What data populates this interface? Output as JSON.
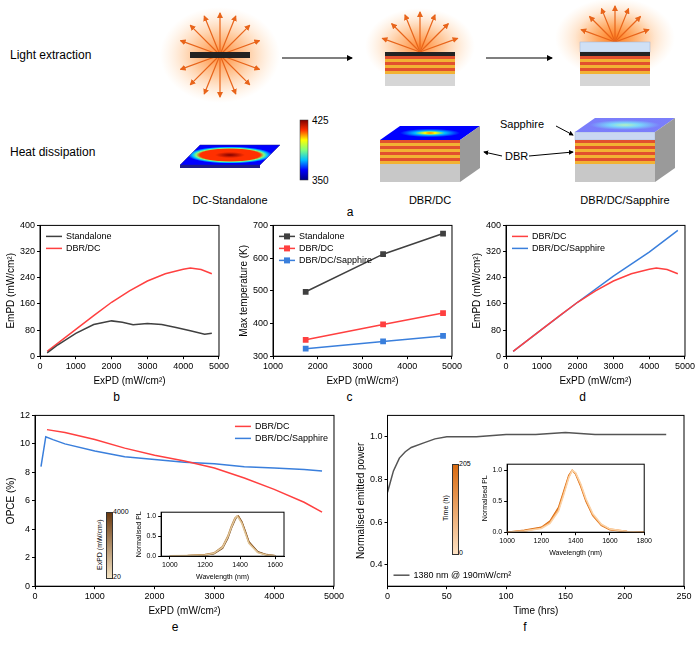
{
  "panel_a": {
    "letter": "a",
    "rows": [
      "Light extraction",
      "Heat dissipation"
    ],
    "devices": [
      "DC-Standalone",
      "DBR/DC",
      "DBR/DC/Sapphire"
    ],
    "layer_labels": [
      "Sapphire",
      "DBR"
    ],
    "colorbar": {
      "range": [
        350,
        425
      ],
      "ticks": [
        350,
        425
      ],
      "colors": [
        "#00007f",
        "#0000ff",
        "#00bfff",
        "#7fff7f",
        "#ffff00",
        "#ff3000",
        "#7f0000"
      ]
    }
  },
  "chart_data": [
    {
      "panel": "b",
      "type": "line",
      "x_label": "ExPD (mW/cm²)",
      "y_label": "EmPD (mW/cm²)",
      "xlim": [
        0,
        5000
      ],
      "xticks": [
        0,
        1000,
        2000,
        3000,
        4000,
        5000
      ],
      "ylim": [
        0,
        400
      ],
      "yticks": [
        0,
        80,
        160,
        240,
        320,
        400
      ],
      "grid": false,
      "legend": "upper left",
      "series": [
        {
          "name": "Standalone",
          "color": "#404040",
          "x": [
            200,
            500,
            1000,
            1500,
            2000,
            2300,
            2600,
            3000,
            3400,
            3800,
            4200,
            4600,
            4800
          ],
          "values": [
            10,
            35,
            70,
            97,
            108,
            104,
            96,
            100,
            97,
            88,
            78,
            67,
            70
          ]
        },
        {
          "name": "DBR/DC",
          "color": "#ff4040",
          "x": [
            200,
            500,
            1000,
            1500,
            2000,
            2500,
            3000,
            3500,
            4000,
            4200,
            4500,
            4800
          ],
          "values": [
            15,
            40,
            82,
            124,
            165,
            200,
            230,
            252,
            266,
            270,
            265,
            252
          ]
        }
      ]
    },
    {
      "panel": "c",
      "type": "line",
      "x_label": "ExPD (mW/cm²)",
      "y_label": "Max temperature (K)",
      "xlim": [
        1000,
        5000
      ],
      "xticks": [
        1000,
        2000,
        3000,
        4000,
        5000
      ],
      "ylim": [
        300,
        700
      ],
      "yticks": [
        300,
        400,
        500,
        600,
        700
      ],
      "grid": false,
      "legend": "upper left",
      "marker": "square",
      "series": [
        {
          "name": "Standalone",
          "color": "#404040",
          "x": [
            1730,
            3460,
            4800
          ],
          "values": [
            497,
            612,
            675
          ]
        },
        {
          "name": "DBR/DC",
          "color": "#ff4040",
          "x": [
            1730,
            3460,
            4800
          ],
          "values": [
            350,
            397,
            432
          ]
        },
        {
          "name": "DBR/DC/Sapphire",
          "color": "#3a7fdc",
          "x": [
            1730,
            3460,
            4800
          ],
          "values": [
            323,
            345,
            362
          ]
        }
      ]
    },
    {
      "panel": "d",
      "type": "line",
      "x_label": "ExPD (mW/cm²)",
      "y_label": "EmPD (mW/cm²)",
      "xlim": [
        0,
        5000
      ],
      "xticks": [
        0,
        1000,
        2000,
        3000,
        4000,
        5000
      ],
      "ylim": [
        0,
        400
      ],
      "yticks": [
        0,
        80,
        160,
        240,
        320,
        400
      ],
      "grid": false,
      "legend": "upper left",
      "series": [
        {
          "name": "DBR/DC",
          "color": "#ff4040",
          "x": [
            200,
            500,
            1000,
            1500,
            2000,
            2500,
            3000,
            3500,
            4000,
            4200,
            4500,
            4800
          ],
          "values": [
            15,
            40,
            82,
            124,
            165,
            200,
            230,
            252,
            266,
            270,
            265,
            252
          ]
        },
        {
          "name": "DBR/DC/Sapphire",
          "color": "#3a7fdc",
          "x": [
            200,
            1000,
            2000,
            3000,
            4000,
            4800
          ],
          "values": [
            15,
            82,
            165,
            245,
            318,
            385
          ]
        }
      ]
    },
    {
      "panel": "e",
      "type": "line",
      "x_label": "ExPD (mW/cm²)",
      "y_label": "OPCE (%)",
      "xlim": [
        0,
        5000
      ],
      "xticks": [
        0,
        1000,
        2000,
        3000,
        4000,
        5000
      ],
      "ylim": [
        0,
        12
      ],
      "yticks": [
        0,
        2,
        4,
        6,
        8,
        10,
        12
      ],
      "grid": false,
      "legend": "upper right",
      "series": [
        {
          "name": "DBR/DC",
          "color": "#ff4040",
          "x": [
            200,
            500,
            1000,
            1500,
            2000,
            2500,
            3000,
            3500,
            4000,
            4500,
            4800
          ],
          "values": [
            11.0,
            10.8,
            10.3,
            9.7,
            9.2,
            8.8,
            8.3,
            7.6,
            6.8,
            5.9,
            5.2
          ]
        },
        {
          "name": "DBR/DC/Sapphire",
          "color": "#3a7fdc",
          "x": [
            100,
            180,
            300,
            500,
            1000,
            1500,
            2000,
            2500,
            3000,
            3500,
            4000,
            4500,
            4800
          ],
          "values": [
            8.4,
            10.5,
            10.3,
            10.0,
            9.5,
            9.1,
            8.9,
            8.7,
            8.6,
            8.4,
            8.3,
            8.2,
            8.1
          ]
        }
      ],
      "inset": {
        "type": "line",
        "x_label": "Wavelength (nm)",
        "y_label": "Normalised PL",
        "xlim": [
          950,
          1650
        ],
        "xticks": [
          1000,
          1200,
          1400,
          1600
        ],
        "ylim": [
          0,
          1.1
        ],
        "yticks": [
          {
            "value": 0,
            "label": "0.0"
          },
          {
            "value": 0.5,
            "label": "0.5"
          },
          {
            "value": 1,
            "label": "1.0"
          }
        ],
        "grid": false,
        "x": [
          1000,
          1100,
          1200,
          1250,
          1300,
          1330,
          1350,
          1370,
          1380,
          1390,
          1410,
          1430,
          1450,
          1500,
          1550,
          1600
        ],
        "series": [
          {
            "color": "#e2c79a",
            "values": [
              0.01,
              0.02,
              0.03,
              0.07,
              0.22,
              0.48,
              0.72,
              0.93,
              1.0,
              0.96,
              0.82,
              0.57,
              0.32,
              0.09,
              0.03,
              0.01
            ]
          },
          {
            "color": "#b07a3c",
            "values": [
              0.01,
              0.02,
              0.04,
              0.08,
              0.24,
              0.5,
              0.75,
              0.95,
              0.99,
              1.0,
              0.84,
              0.6,
              0.34,
              0.1,
              0.03,
              0.01
            ]
          },
          {
            "color": "#6b3a10",
            "values": [
              0.0,
              0.01,
              0.03,
              0.06,
              0.2,
              0.45,
              0.7,
              0.9,
              0.98,
              1.0,
              0.86,
              0.62,
              0.36,
              0.11,
              0.04,
              0.01
            ]
          }
        ],
        "colorbar": {
          "label": "ExPD (mW/cm²)",
          "range": [
            20,
            4000
          ],
          "ticks": [
            20,
            4000
          ],
          "colors": [
            "#f4e4c4",
            "#6b3a10"
          ]
        }
      }
    },
    {
      "panel": "f",
      "type": "line",
      "x_label": "Time (hrs)",
      "y_label": "Normalised emitted power",
      "xlim": [
        0,
        250
      ],
      "xticks": [
        0,
        50,
        100,
        150,
        200,
        250
      ],
      "ylim": [
        0.3,
        1.1
      ],
      "yticks": [
        0.4,
        0.6,
        0.8,
        {
          "value": 1,
          "label": "1.0"
        }
      ],
      "grid": false,
      "legend": "lower left",
      "series": [
        {
          "name": "1380 nm @ 190mW/cm²",
          "color": "#555555",
          "x": [
            0,
            2,
            5,
            10,
            15,
            20,
            30,
            40,
            50,
            75,
            100,
            125,
            150,
            175,
            200,
            235
          ],
          "values": [
            0.74,
            0.78,
            0.84,
            0.9,
            0.93,
            0.95,
            0.97,
            0.99,
            1.0,
            1.0,
            1.01,
            1.01,
            1.02,
            1.01,
            1.01,
            1.01
          ]
        }
      ],
      "inset": {
        "type": "line",
        "x_label": "Wavelength (nm)",
        "y_label": "Normalised PL",
        "xlim": [
          1000,
          1800
        ],
        "xticks": [
          1000,
          1200,
          1400,
          1600,
          1800
        ],
        "ylim": [
          0,
          1.1
        ],
        "yticks": [
          {
            "value": 0,
            "label": "0.0"
          },
          {
            "value": 0.5,
            "label": "0.5"
          },
          {
            "value": 1,
            "label": "1.0"
          }
        ],
        "grid": false,
        "x": [
          1000,
          1100,
          1200,
          1250,
          1300,
          1330,
          1360,
          1380,
          1400,
          1430,
          1460,
          1500,
          1550,
          1600,
          1700,
          1800
        ],
        "series": [
          {
            "color": "#fbd3a8",
            "values": [
              0.0,
              0.02,
              0.06,
              0.14,
              0.34,
              0.6,
              0.88,
              1.0,
              0.96,
              0.78,
              0.54,
              0.3,
              0.13,
              0.05,
              0.01,
              0.0
            ]
          },
          {
            "color": "#f39a4a",
            "values": [
              0.0,
              0.02,
              0.07,
              0.16,
              0.37,
              0.63,
              0.9,
              1.0,
              0.95,
              0.76,
              0.52,
              0.28,
              0.12,
              0.05,
              0.01,
              0.0
            ]
          },
          {
            "color": "#d86a10",
            "values": [
              0.0,
              0.03,
              0.08,
              0.18,
              0.4,
              0.66,
              0.92,
              1.0,
              0.94,
              0.74,
              0.5,
              0.27,
              0.11,
              0.04,
              0.01,
              0.0
            ]
          }
        ],
        "colorbar": {
          "label": "Time (h)",
          "range": [
            0,
            205
          ],
          "ticks": [
            0,
            205
          ],
          "colors": [
            "#fde2c4",
            "#d86a10"
          ]
        }
      }
    }
  ]
}
